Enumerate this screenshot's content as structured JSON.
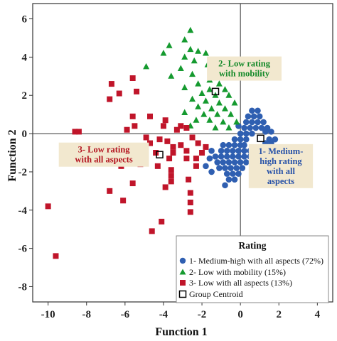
{
  "colors": {
    "series1": "#2f5fb1",
    "series2": "#159a2f",
    "series3": "#c0152a",
    "series1_text": "#2852a8",
    "series2_text": "#158a2a",
    "series3_text": "#b3141f",
    "annotation_bg": "#f2e8cf",
    "frame": "#333333"
  },
  "chart_data": {
    "type": "scatter",
    "xlabel": "Function 1",
    "ylabel": "Function 2",
    "xlim": [
      -10.8,
      4.8
    ],
    "ylim": [
      -8.8,
      6.8
    ],
    "xticks": [
      -10,
      -8,
      -6,
      -4,
      -2,
      0,
      2,
      4
    ],
    "yticks": [
      -8,
      -6,
      -4,
      -2,
      0,
      2,
      4,
      6
    ],
    "reference_lines": {
      "x": 0,
      "y": 0
    },
    "grid": false,
    "legend": {
      "title": "Rating",
      "position": "bottom-right",
      "entries": [
        "1- Medium-high with all aspects (72%)",
        "2- Low with mobility (15%)",
        "3- Low with all aspects (13%)",
        "Group Centroid"
      ]
    },
    "annotations": [
      {
        "series": 1,
        "lines": [
          "1- Medium-",
          "high rating",
          "with all",
          "aspects"
        ],
        "x": 2.1,
        "y": -1.7
      },
      {
        "series": 2,
        "lines": [
          "2- Low rating",
          "with mobility"
        ],
        "x": 0.2,
        "y": 3.4
      },
      {
        "series": 3,
        "lines": [
          "3- Low rating",
          "with all aspects"
        ],
        "x": -7.1,
        "y": -1.1
      }
    ],
    "series": [
      {
        "name": "1- Medium-high with all aspects (72%)",
        "marker": "circle",
        "points": [
          [
            0.6,
            1.2
          ],
          [
            0.9,
            1.2
          ],
          [
            0.4,
            0.9
          ],
          [
            0.7,
            0.9
          ],
          [
            1.0,
            0.9
          ],
          [
            0.3,
            0.6
          ],
          [
            0.6,
            0.6
          ],
          [
            0.9,
            0.6
          ],
          [
            1.2,
            0.6
          ],
          [
            -0.1,
            0.4
          ],
          [
            0.2,
            0.3
          ],
          [
            0.5,
            0.3
          ],
          [
            0.8,
            0.3
          ],
          [
            1.1,
            0.3
          ],
          [
            1.4,
            0.3
          ],
          [
            0.0,
            0.0
          ],
          [
            0.3,
            0.0
          ],
          [
            0.6,
            0.0
          ],
          [
            1.3,
            0.1
          ],
          [
            1.6,
            0.1
          ],
          [
            -0.3,
            -0.3
          ],
          [
            0.0,
            -0.3
          ],
          [
            0.3,
            -0.3
          ],
          [
            1.5,
            -0.3
          ],
          [
            1.8,
            -0.3
          ],
          [
            -0.6,
            -0.6
          ],
          [
            -0.3,
            -0.6
          ],
          [
            0.0,
            -0.6
          ],
          [
            0.2,
            -0.6
          ],
          [
            1.3,
            -0.5
          ],
          [
            1.6,
            -0.5
          ],
          [
            -1.0,
            -0.9
          ],
          [
            -0.7,
            -0.9
          ],
          [
            -0.4,
            -0.9
          ],
          [
            -0.1,
            -0.9
          ],
          [
            0.2,
            -0.9
          ],
          [
            0.5,
            -0.9
          ],
          [
            0.8,
            -0.9
          ],
          [
            1.1,
            -0.9
          ],
          [
            1.4,
            -0.8
          ],
          [
            -1.3,
            -1.2
          ],
          [
            -1.0,
            -1.2
          ],
          [
            -0.7,
            -1.2
          ],
          [
            -0.4,
            -1.2
          ],
          [
            -0.1,
            -1.2
          ],
          [
            0.2,
            -1.2
          ],
          [
            0.5,
            -1.2
          ],
          [
            0.8,
            -1.2
          ],
          [
            -1.2,
            -1.5
          ],
          [
            -0.9,
            -1.5
          ],
          [
            -0.6,
            -1.5
          ],
          [
            -0.3,
            -1.5
          ],
          [
            0.0,
            -1.5
          ],
          [
            0.3,
            -1.5
          ],
          [
            -1.1,
            -1.8
          ],
          [
            -0.8,
            -1.8
          ],
          [
            -0.5,
            -1.8
          ],
          [
            -0.2,
            -1.8
          ],
          [
            0.1,
            -1.8
          ],
          [
            -0.7,
            -2.1
          ],
          [
            -0.4,
            -2.1
          ],
          [
            -0.1,
            -2.1
          ],
          [
            -0.6,
            -2.4
          ],
          [
            -0.3,
            -2.4
          ],
          [
            -0.8,
            -2.7
          ],
          [
            -0.9,
            -0.6
          ],
          [
            -1.5,
            -0.9
          ],
          [
            -1.6,
            -1.3
          ],
          [
            -1.8,
            -1.7
          ],
          [
            -1.5,
            -2.0
          ]
        ]
      },
      {
        "name": "2- Low with mobility (15%)",
        "marker": "triangle",
        "points": [
          [
            -2.6,
            5.4
          ],
          [
            -2.9,
            4.9
          ],
          [
            -3.7,
            4.6
          ],
          [
            -2.6,
            4.4
          ],
          [
            -2.2,
            4.3
          ],
          [
            -1.8,
            4.2
          ],
          [
            -2.9,
            4.0
          ],
          [
            -4.0,
            4.2
          ],
          [
            -2.4,
            3.8
          ],
          [
            -1.7,
            3.6
          ],
          [
            -4.9,
            3.5
          ],
          [
            -3.1,
            3.4
          ],
          [
            -2.5,
            3.1
          ],
          [
            -1.3,
            3.1
          ],
          [
            -3.6,
            3.0
          ],
          [
            -1.6,
            2.8
          ],
          [
            -2.2,
            2.6
          ],
          [
            -1.1,
            2.6
          ],
          [
            -2.9,
            2.4
          ],
          [
            -1.6,
            2.3
          ],
          [
            -0.8,
            2.3
          ],
          [
            -2.0,
            2.1
          ],
          [
            -1.3,
            2.0
          ],
          [
            -0.6,
            2.0
          ],
          [
            -2.5,
            1.8
          ],
          [
            -1.8,
            1.7
          ],
          [
            -1.1,
            1.6
          ],
          [
            -0.3,
            1.6
          ],
          [
            -2.2,
            1.4
          ],
          [
            -1.5,
            1.3
          ],
          [
            -0.8,
            1.3
          ],
          [
            -2.9,
            1.1
          ],
          [
            -1.9,
            1.0
          ],
          [
            -1.2,
            1.0
          ],
          [
            -0.5,
            1.0
          ],
          [
            -2.3,
            0.7
          ],
          [
            -1.6,
            0.7
          ],
          [
            -0.9,
            0.6
          ],
          [
            -0.2,
            0.6
          ],
          [
            -2.6,
            0.4
          ],
          [
            -1.3,
            0.3
          ],
          [
            -0.6,
            0.3
          ]
        ]
      },
      {
        "name": "3- Low with all aspects (13%)",
        "marker": "square",
        "points": [
          [
            -10.0,
            -3.8
          ],
          [
            -9.6,
            -6.4
          ],
          [
            -8.6,
            0.1
          ],
          [
            -8.4,
            0.1
          ],
          [
            -6.7,
            2.6
          ],
          [
            -6.8,
            1.8
          ],
          [
            -6.3,
            2.1
          ],
          [
            -5.6,
            2.9
          ],
          [
            -5.4,
            2.2
          ],
          [
            -5.6,
            0.9
          ],
          [
            -5.5,
            0.4
          ],
          [
            -4.7,
            0.9
          ],
          [
            -5.9,
            0.2
          ],
          [
            -4.9,
            -0.2
          ],
          [
            -4.2,
            -0.3
          ],
          [
            -3.9,
            0.7
          ],
          [
            -3.8,
            -0.4
          ],
          [
            -5.7,
            -0.8
          ],
          [
            -5.2,
            -0.9
          ],
          [
            -4.7,
            -0.5
          ],
          [
            -4.4,
            -1.0
          ],
          [
            -3.5,
            -0.7
          ],
          [
            -3.1,
            0.4
          ],
          [
            -2.8,
            0.3
          ],
          [
            -3.1,
            -0.6
          ],
          [
            -2.8,
            -0.9
          ],
          [
            -2.5,
            -0.2
          ],
          [
            -2.2,
            -0.5
          ],
          [
            -1.8,
            -0.7
          ],
          [
            -3.5,
            -1.0
          ],
          [
            -3.3,
            0.2
          ],
          [
            -2.3,
            -1.3
          ],
          [
            -2.0,
            -1.0
          ],
          [
            -3.7,
            -1.3
          ],
          [
            -2.8,
            -1.3
          ],
          [
            -2.3,
            -1.7
          ],
          [
            -3.6,
            -1.9
          ],
          [
            -3.6,
            -2.2
          ],
          [
            -3.6,
            -2.5
          ],
          [
            -2.7,
            -2.4
          ],
          [
            -2.6,
            -3.1
          ],
          [
            -2.6,
            -3.6
          ],
          [
            -2.6,
            -4.1
          ],
          [
            -4.3,
            -1.7
          ],
          [
            -5.2,
            -1.6
          ],
          [
            -6.2,
            -1.7
          ],
          [
            -5.6,
            -2.6
          ],
          [
            -6.8,
            -3.0
          ],
          [
            -6.1,
            -3.5
          ],
          [
            -4.1,
            -4.6
          ],
          [
            -4.6,
            -5.1
          ],
          [
            -3.9,
            -2.8
          ],
          [
            -4.0,
            0.4
          ]
        ]
      }
    ],
    "centroids": [
      {
        "series": 1,
        "x": 1.05,
        "y": -0.25
      },
      {
        "series": 2,
        "x": -1.3,
        "y": 2.2
      },
      {
        "series": 3,
        "x": -4.2,
        "y": -1.1
      }
    ]
  }
}
